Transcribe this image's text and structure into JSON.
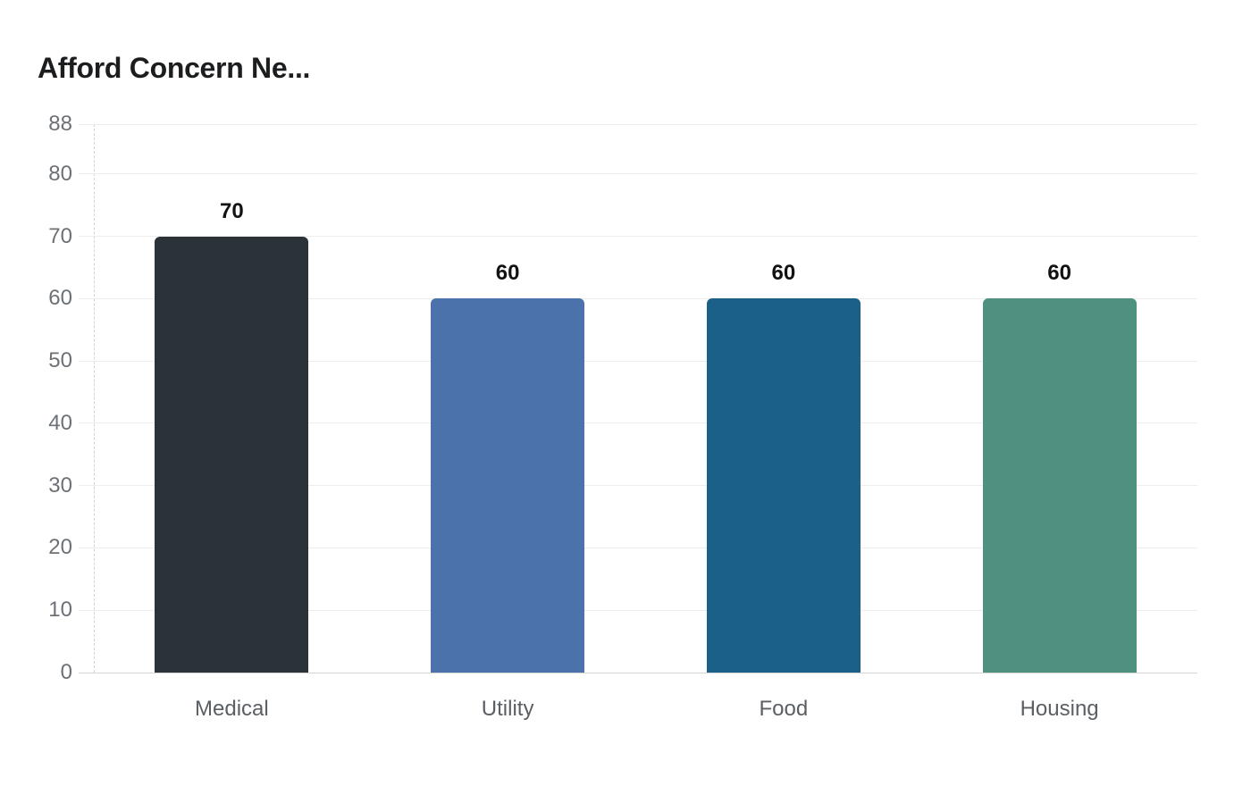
{
  "chart_data": {
    "type": "bar",
    "title": "Afford Concern Ne...",
    "categories": [
      "Medical",
      "Utility",
      "Food",
      "Housing"
    ],
    "values": [
      70,
      60,
      60,
      60
    ],
    "value_labels": [
      "70",
      "60",
      "60",
      "60"
    ],
    "bar_colors": [
      "#2b3338",
      "#4b72ab",
      "#1a6089",
      "#4f9180"
    ],
    "yticks": [
      0,
      10,
      20,
      30,
      40,
      50,
      60,
      70,
      80,
      88
    ],
    "ylim": [
      0,
      88
    ],
    "xlabel": "",
    "ylabel": "",
    "grid": true,
    "legend_position": "none",
    "colors": {
      "title": "#1b1d1f",
      "grid": "#ededed",
      "baseline": "#d5d5d5",
      "axis_dash": "#d2d2d2",
      "y_tick_label": "#6c7176",
      "category_label": "#5a5f64",
      "value_label": "#121212",
      "background": "#ffffff"
    }
  }
}
